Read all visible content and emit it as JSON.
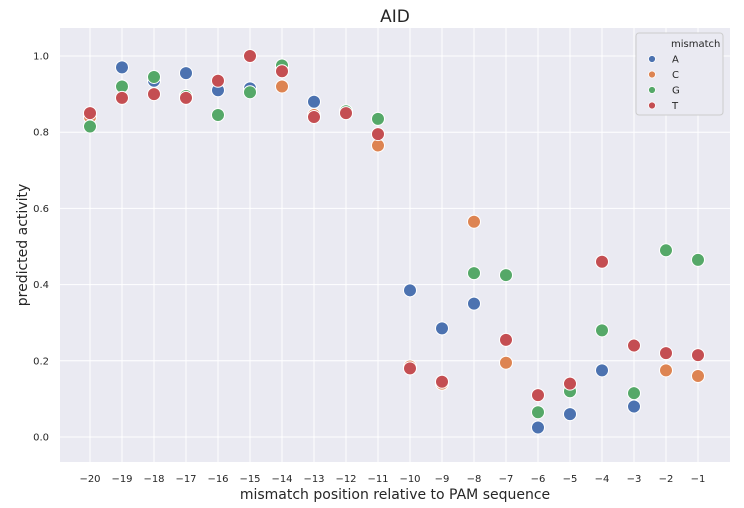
{
  "chart_data": {
    "type": "scatter",
    "title": "AID",
    "xlabel": "mismatch position relative to PAM sequence",
    "ylabel": "predicted activity",
    "categories": [
      "−20",
      "−19",
      "−18",
      "−17",
      "−16",
      "−15",
      "−14",
      "−13",
      "−12",
      "−11",
      "−10",
      "−9",
      "−8",
      "−7",
      "−6",
      "−5",
      "−4",
      "−3",
      "−2",
      "−1"
    ],
    "ylim": [
      -0.07,
      1.07
    ],
    "yticks": [
      "0.0",
      "0.2",
      "0.4",
      "0.6",
      "0.8",
      "1.0"
    ],
    "ytick_values": [
      0.0,
      0.2,
      0.4,
      0.6,
      0.8,
      1.0
    ],
    "grid": true,
    "background": "#EAEAF2",
    "legend": {
      "title": "mismatch",
      "position": "top-right"
    },
    "series": [
      {
        "name": "A",
        "color": "#4C72B0",
        "values": [
          null,
          0.97,
          0.935,
          0.955,
          0.91,
          0.915,
          0.97,
          0.88,
          0.855,
          null,
          0.385,
          0.285,
          0.35,
          null,
          0.025,
          0.06,
          0.175,
          0.08,
          null,
          null
        ]
      },
      {
        "name": "C",
        "color": "#DD8452",
        "values": [
          0.84,
          null,
          null,
          0.895,
          null,
          null,
          0.92,
          0.845,
          null,
          0.765,
          0.185,
          0.14,
          0.565,
          0.195,
          null,
          null,
          null,
          null,
          0.175,
          0.16
        ]
      },
      {
        "name": "G",
        "color": "#55A868",
        "values": [
          0.815,
          0.92,
          0.945,
          0.895,
          0.845,
          0.905,
          0.975,
          null,
          0.855,
          0.835,
          null,
          null,
          0.43,
          0.425,
          0.065,
          0.12,
          0.28,
          0.115,
          0.49,
          0.465
        ]
      },
      {
        "name": "T",
        "color": "#C44E52",
        "values": [
          0.85,
          0.89,
          0.9,
          0.89,
          0.935,
          1.0,
          0.96,
          0.84,
          0.85,
          0.795,
          0.18,
          0.145,
          null,
          0.255,
          0.11,
          0.14,
          0.46,
          0.24,
          0.22,
          0.215
        ]
      }
    ]
  }
}
